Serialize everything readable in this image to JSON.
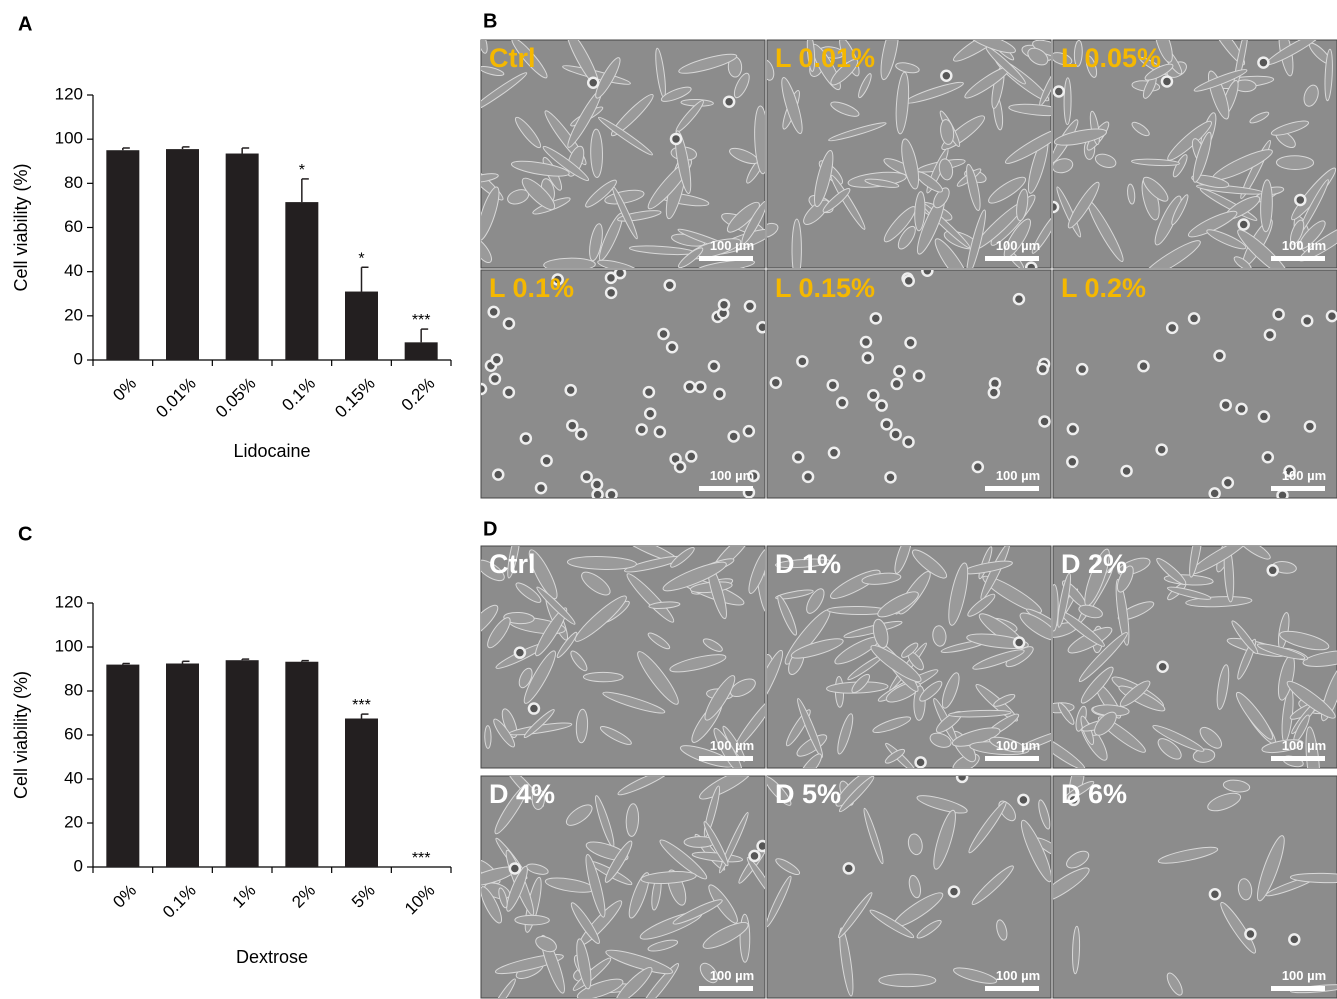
{
  "chart_data": [
    {
      "type": "bar",
      "panel": "A",
      "xlabel": "Lidocaine",
      "ylabel": "Cell viability (%)",
      "categories": [
        "0%",
        "0.01%",
        "0.05%",
        "0.1%",
        "0.15%",
        "0.2%"
      ],
      "values": [
        95,
        95.5,
        93.5,
        71.5,
        31,
        8
      ],
      "errors": [
        1,
        1,
        2.5,
        10.5,
        11,
        6
      ],
      "significance": [
        null,
        null,
        null,
        "*",
        "*",
        "***"
      ],
      "color": "#231f20",
      "ylim": [
        0,
        120
      ],
      "yticks": [
        0,
        20,
        40,
        60,
        80,
        100,
        120
      ]
    },
    {
      "type": "bar",
      "panel": "C",
      "xlabel": "Dextrose",
      "ylabel": "Cell viability (%)",
      "categories": [
        "0%",
        "0.1%",
        "1%",
        "2%",
        "5%",
        "10%"
      ],
      "values": [
        92,
        92.5,
        94,
        93.3,
        67.5,
        0
      ],
      "errors": [
        0.5,
        1,
        0.5,
        0.5,
        2,
        0
      ],
      "significance": [
        null,
        null,
        null,
        null,
        "***",
        "***"
      ],
      "color": "#231f20",
      "ylim": [
        0,
        120
      ],
      "yticks": [
        0,
        20,
        40,
        60,
        80,
        100,
        120
      ]
    }
  ],
  "micrographs": [
    {
      "panel": "B",
      "labels": [
        "Ctrl",
        "L 0.01%",
        "L 0.05%",
        "L 0.1%",
        "L 0.15%",
        "L 0.2%"
      ],
      "scale_bar": "100 µm",
      "label_color": "#f5b800"
    },
    {
      "panel": "D",
      "labels": [
        "Ctrl",
        "D 1%",
        "D 2%",
        "D 4%",
        "D 5%",
        "D 6%"
      ],
      "scale_bar": "100 µm",
      "label_color": "#ffffff"
    }
  ]
}
